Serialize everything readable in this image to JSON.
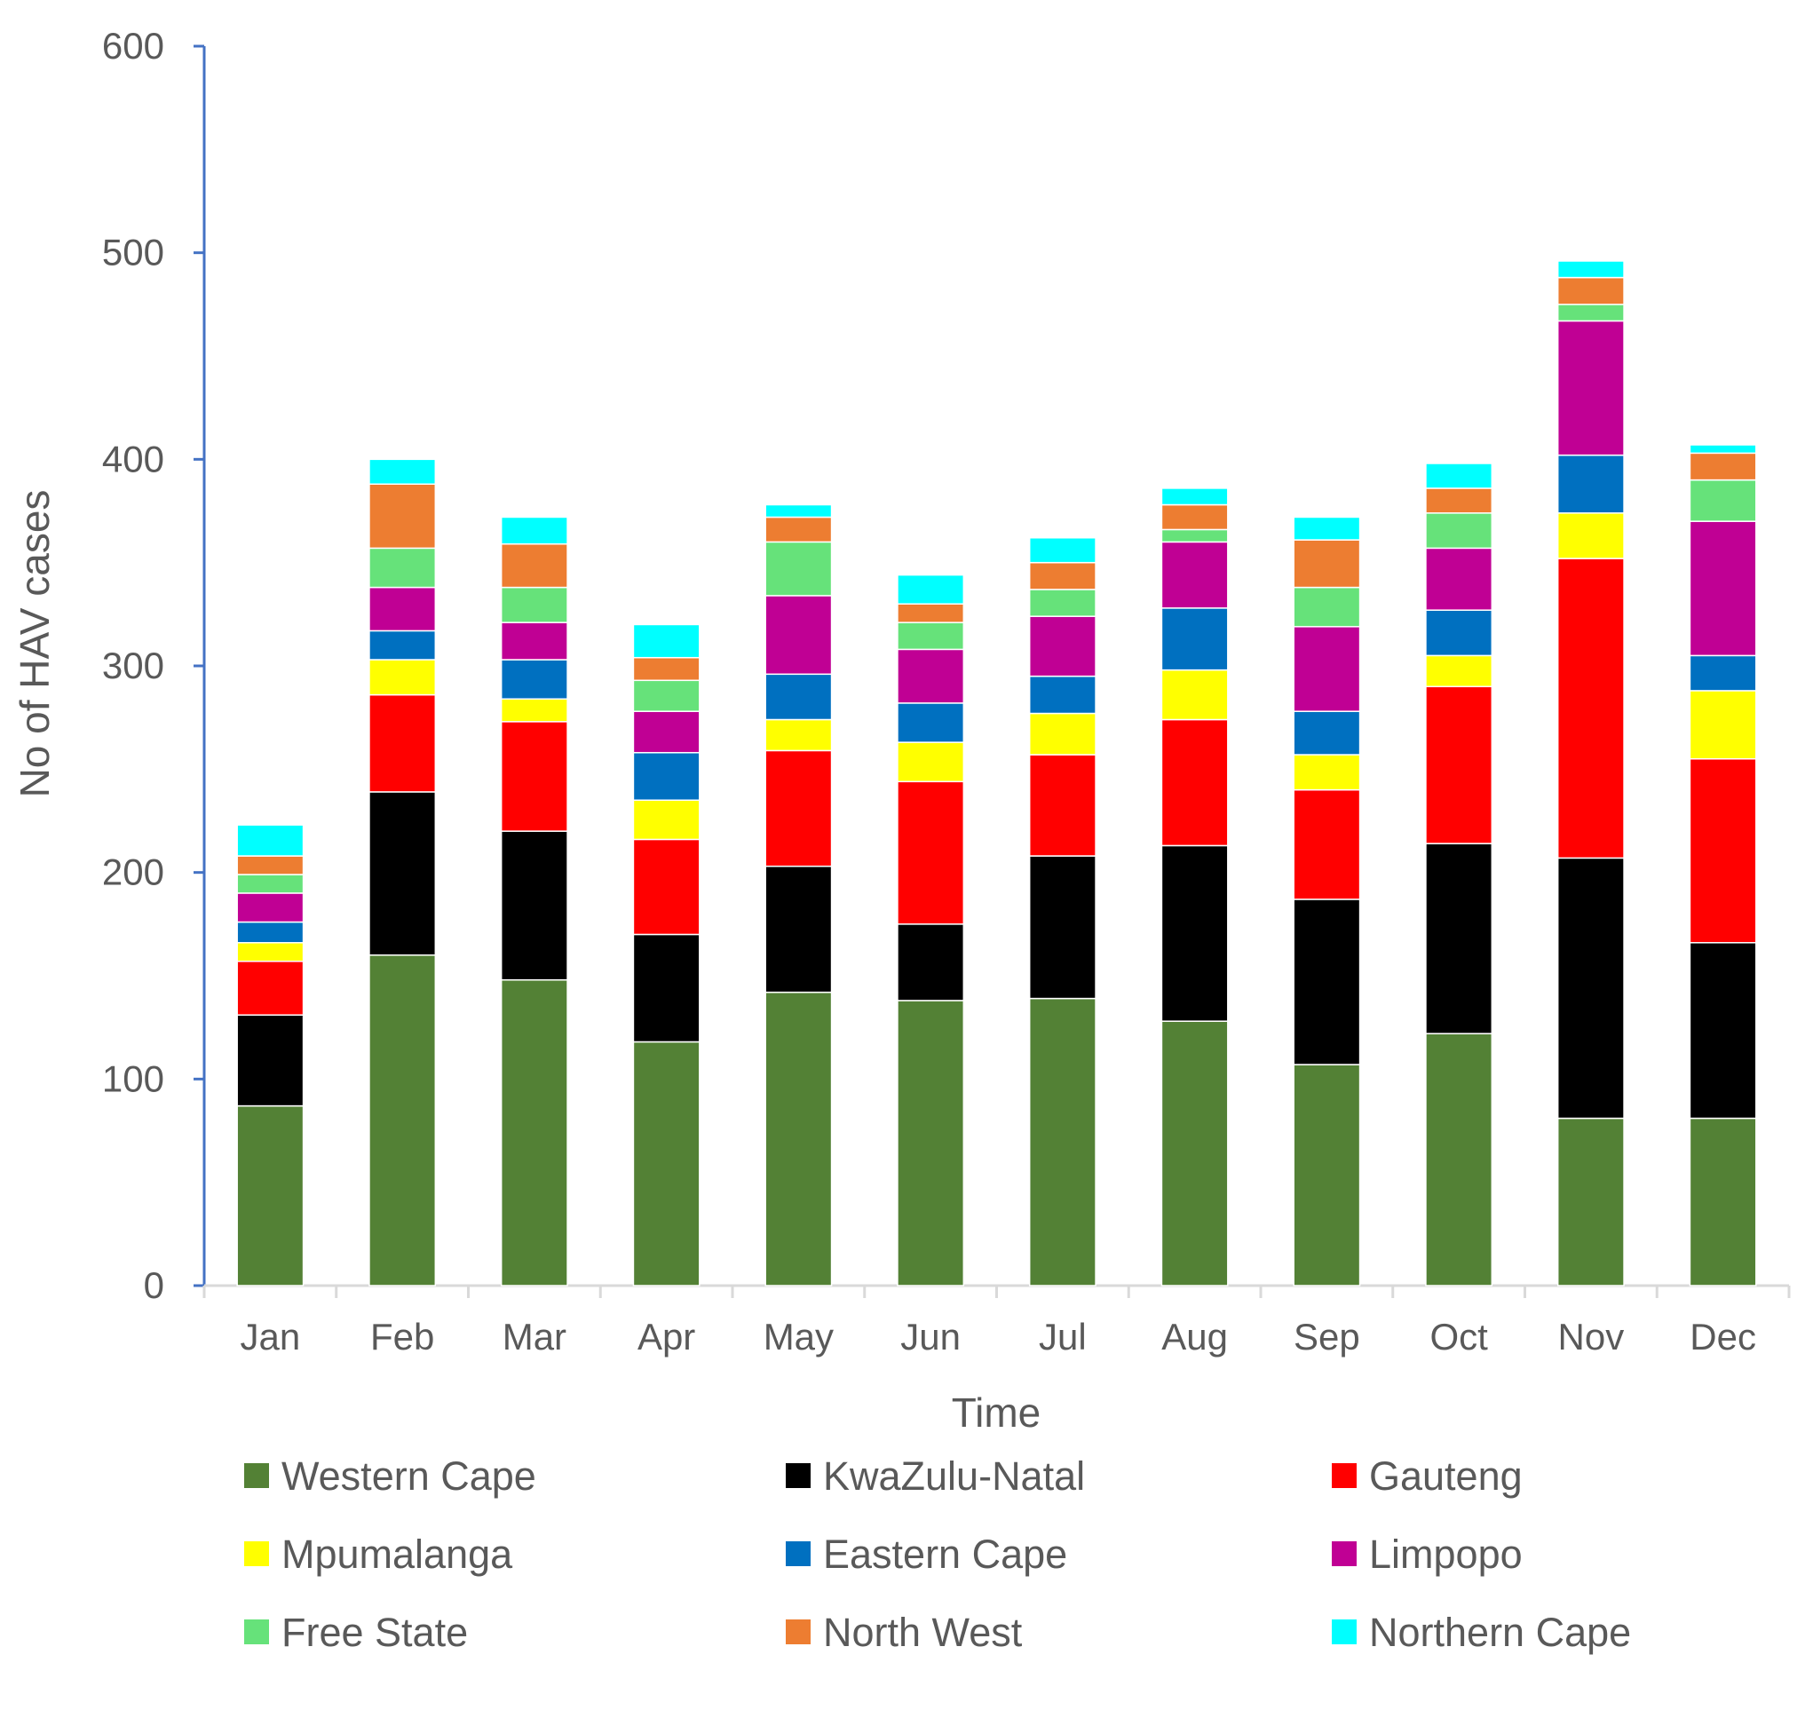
{
  "chart_data": {
    "type": "bar",
    "stacked": true,
    "title": "",
    "xlabel": "Time",
    "ylabel": "No of HAV cases",
    "ylim": [
      0,
      600
    ],
    "yticks": [
      0,
      100,
      200,
      300,
      400,
      500,
      600
    ],
    "categories": [
      "Jan",
      "Feb",
      "Mar",
      "Apr",
      "May",
      "Jun",
      "Jul",
      "Aug",
      "Sep",
      "Oct",
      "Nov",
      "Dec"
    ],
    "legend_position": "bottom",
    "series": [
      {
        "name": "Western Cape",
        "color": "#538135",
        "values": [
          87,
          160,
          148,
          118,
          142,
          138,
          139,
          128,
          107,
          122,
          81,
          81
        ]
      },
      {
        "name": "KwaZulu-Natal",
        "color": "#000000",
        "values": [
          44,
          79,
          72,
          52,
          61,
          37,
          69,
          85,
          80,
          92,
          126,
          85
        ]
      },
      {
        "name": "Gauteng",
        "color": "#ff0000",
        "values": [
          26,
          47,
          53,
          46,
          56,
          69,
          49,
          61,
          53,
          76,
          145,
          89
        ]
      },
      {
        "name": "Mpumalanga",
        "color": "#ffff00",
        "values": [
          9,
          17,
          11,
          19,
          15,
          19,
          20,
          24,
          17,
          15,
          22,
          33
        ]
      },
      {
        "name": "Eastern Cape",
        "color": "#0070c0",
        "values": [
          10,
          14,
          19,
          23,
          22,
          19,
          18,
          30,
          21,
          22,
          28,
          17
        ]
      },
      {
        "name": "Limpopo",
        "color": "#c00094",
        "values": [
          14,
          21,
          18,
          20,
          38,
          26,
          29,
          32,
          41,
          30,
          65,
          65
        ]
      },
      {
        "name": "Free State",
        "color": "#66e27a",
        "values": [
          9,
          19,
          17,
          15,
          26,
          13,
          13,
          6,
          19,
          17,
          8,
          20
        ]
      },
      {
        "name": "North West",
        "color": "#ed7d31",
        "values": [
          9,
          31,
          21,
          11,
          12,
          9,
          13,
          12,
          23,
          12,
          13,
          13
        ]
      },
      {
        "name": "Northern Cape",
        "color": "#00ffff",
        "values": [
          15,
          12,
          13,
          16,
          6,
          14,
          12,
          8,
          11,
          12,
          8,
          4
        ]
      }
    ]
  }
}
